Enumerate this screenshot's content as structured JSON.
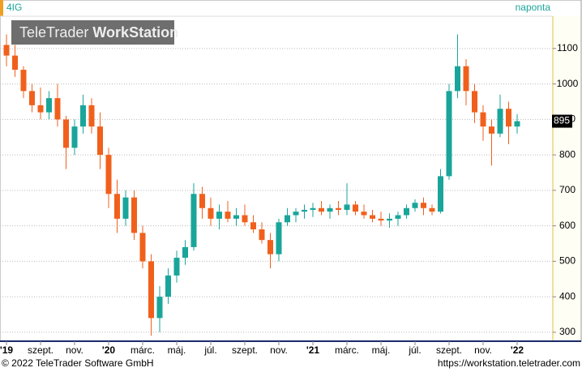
{
  "chart_data": {
    "type": "candlestick",
    "title": "4IG",
    "period": "naponta",
    "watermark": {
      "brand": "TeleTrader",
      "product": "WorkStation"
    },
    "footer_left": "© 2022 TeleTrader Software GmbH",
    "footer_right": "https://workstation.teletrader.com",
    "up_color": "#1aa59a",
    "down_color": "#f0601c",
    "grid": true,
    "last_value": 895,
    "ylim": [
      277,
      1191
    ],
    "yticks": [
      300,
      400,
      500,
      600,
      700,
      800,
      900,
      1000,
      1100
    ],
    "categories": [
      "'19",
      null,
      null,
      null,
      "szept.",
      null,
      null,
      null,
      "nov.",
      null,
      null,
      null,
      "'20",
      null,
      null,
      null,
      "márc.",
      null,
      null,
      null,
      "máj.",
      null,
      null,
      null,
      "júl.",
      null,
      null,
      null,
      "szept.",
      null,
      null,
      null,
      "nov.",
      null,
      null,
      null,
      "'21",
      null,
      null,
      null,
      "márc.",
      null,
      null,
      null,
      "máj.",
      null,
      null,
      null,
      "júl.",
      null,
      null,
      null,
      "szept.",
      null,
      null,
      null,
      "nov.",
      null,
      null,
      null,
      "'22"
    ],
    "ohlc": [
      [
        1110,
        1140,
        1050,
        1080
      ],
      [
        1080,
        1110,
        1020,
        1040
      ],
      [
        1040,
        1050,
        960,
        980
      ],
      [
        980,
        1000,
        920,
        940
      ],
      [
        940,
        990,
        900,
        920
      ],
      [
        920,
        980,
        900,
        960
      ],
      [
        960,
        1000,
        880,
        900
      ],
      [
        900,
        910,
        760,
        820
      ],
      [
        820,
        900,
        800,
        880
      ],
      [
        880,
        970,
        860,
        940
      ],
      [
        940,
        960,
        860,
        880
      ],
      [
        880,
        920,
        760,
        800
      ],
      [
        800,
        820,
        650,
        690
      ],
      [
        690,
        730,
        580,
        620
      ],
      [
        620,
        700,
        600,
        680
      ],
      [
        680,
        700,
        560,
        580
      ],
      [
        580,
        600,
        480,
        500
      ],
      [
        500,
        520,
        290,
        340
      ],
      [
        340,
        430,
        300,
        400
      ],
      [
        400,
        480,
        380,
        460
      ],
      [
        460,
        530,
        440,
        510
      ],
      [
        510,
        560,
        490,
        540
      ],
      [
        540,
        720,
        530,
        690
      ],
      [
        690,
        710,
        620,
        650
      ],
      [
        650,
        680,
        600,
        620
      ],
      [
        620,
        660,
        590,
        640
      ],
      [
        640,
        670,
        610,
        620
      ],
      [
        620,
        650,
        600,
        630
      ],
      [
        630,
        660,
        600,
        610
      ],
      [
        610,
        630,
        580,
        590
      ],
      [
        590,
        610,
        550,
        560
      ],
      [
        560,
        580,
        480,
        520
      ],
      [
        520,
        620,
        500,
        610
      ],
      [
        610,
        650,
        600,
        630
      ],
      [
        630,
        650,
        610,
        640
      ],
      [
        640,
        660,
        620,
        645
      ],
      [
        645,
        665,
        625,
        650
      ],
      [
        650,
        670,
        630,
        640
      ],
      [
        640,
        660,
        620,
        650
      ],
      [
        650,
        670,
        630,
        645
      ],
      [
        645,
        720,
        630,
        660
      ],
      [
        660,
        670,
        630,
        640
      ],
      [
        640,
        660,
        620,
        630
      ],
      [
        630,
        645,
        610,
        620
      ],
      [
        620,
        640,
        600,
        615
      ],
      [
        615,
        635,
        595,
        620
      ],
      [
        620,
        640,
        600,
        630
      ],
      [
        630,
        660,
        620,
        650
      ],
      [
        650,
        675,
        640,
        665
      ],
      [
        665,
        680,
        630,
        650
      ],
      [
        650,
        660,
        630,
        640
      ],
      [
        640,
        760,
        635,
        740
      ],
      [
        740,
        1000,
        730,
        980
      ],
      [
        980,
        1140,
        960,
        1050
      ],
      [
        1050,
        1070,
        940,
        980
      ],
      [
        980,
        1000,
        890,
        920
      ],
      [
        920,
        940,
        840,
        880
      ],
      [
        880,
        900,
        770,
        860
      ],
      [
        860,
        970,
        850,
        930
      ],
      [
        930,
        950,
        830,
        880
      ],
      [
        880,
        915,
        860,
        895
      ]
    ]
  }
}
